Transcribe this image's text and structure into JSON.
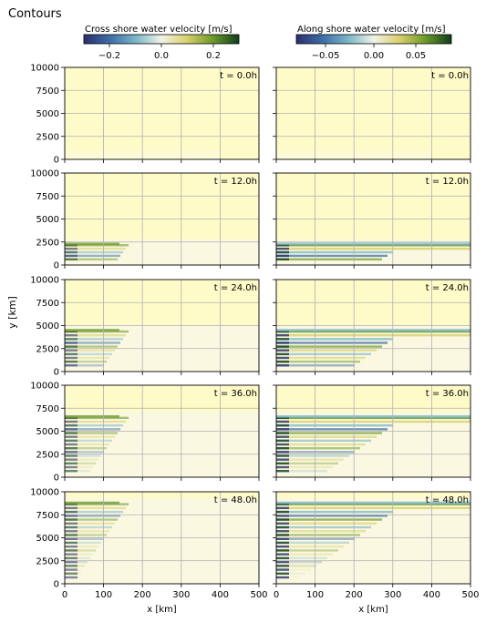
{
  "window_title": "Contours",
  "colorbars": [
    {
      "label": "Cross shore water velocity [m/s]",
      "ticks": [
        "−0.2",
        "0.0",
        "0.2"
      ]
    },
    {
      "label": "Along shore water velocity [m/s]",
      "ticks": [
        "−0.05",
        "0.00",
        "0.05"
      ]
    }
  ],
  "colormap": [
    "#2b2f6e",
    "#3d6da8",
    "#79b6c6",
    "#f2f2e8",
    "#d9cf6a",
    "#6b9a2a",
    "#0f3d1e"
  ],
  "background_color": "#fffbc8",
  "chart_data": {
    "type": "heatmap",
    "xlabel": "x [km]",
    "ylabel": "y [km]",
    "xlim": [
      0,
      500
    ],
    "ylim": [
      0,
      10000
    ],
    "x_ticks": [
      "0",
      "100",
      "200",
      "300",
      "400",
      "500"
    ],
    "y_ticks": [
      "0",
      "2500",
      "5000",
      "7500",
      "10000"
    ],
    "grid": true,
    "columns": [
      "Cross shore water velocity",
      "Along shore water velocity"
    ],
    "panels": [
      {
        "time_label": "t = 0.0h",
        "front_y": 0
      },
      {
        "time_label": "t = 12.0h",
        "front_y": 2300
      },
      {
        "time_label": "t = 24.0h",
        "front_y": 4500
      },
      {
        "time_label": "t = 36.0h",
        "front_y": 6600
      },
      {
        "time_label": "t = 48.0h",
        "front_y": 8800
      }
    ]
  }
}
